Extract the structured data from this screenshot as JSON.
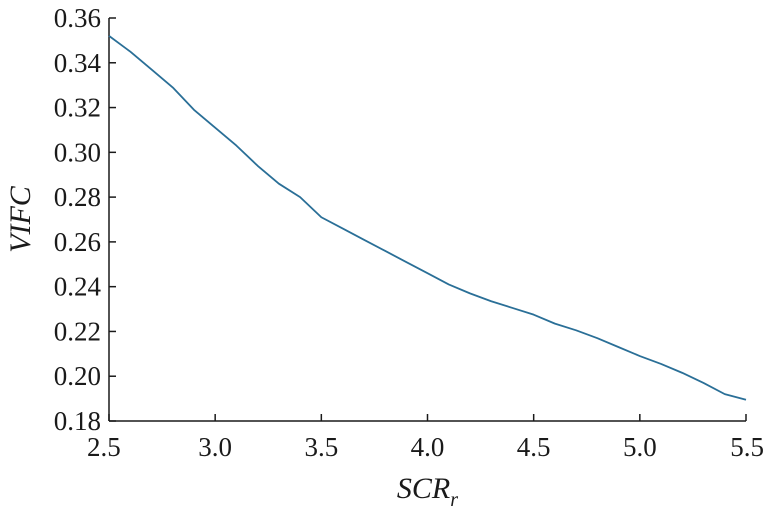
{
  "chart_data": {
    "type": "line",
    "xlabel": "SCR",
    "xlabel_subscript": "r",
    "ylabel": "VIFC",
    "xlim": [
      2.5,
      5.5
    ],
    "ylim": [
      0.18,
      0.36
    ],
    "xticks": [
      "2.5",
      "3.0",
      "3.5",
      "4.0",
      "4.5",
      "5.0",
      "5.5"
    ],
    "yticks": [
      "0.18",
      "0.20",
      "0.22",
      "0.24",
      "0.26",
      "0.28",
      "0.30",
      "0.32",
      "0.34",
      "0.36"
    ],
    "grid": false,
    "series": [
      {
        "color": "#2a6f97",
        "x": [
          2.5,
          2.6,
          2.7,
          2.8,
          2.9,
          3.0,
          3.1,
          3.2,
          3.3,
          3.4,
          3.5,
          3.6,
          3.7,
          3.8,
          3.9,
          4.0,
          4.1,
          4.2,
          4.3,
          4.4,
          4.5,
          4.6,
          4.7,
          4.8,
          4.9,
          5.0,
          5.1,
          5.2,
          5.3,
          5.4,
          5.5
        ],
        "y": [
          0.352,
          0.345,
          0.337,
          0.329,
          0.319,
          0.311,
          0.303,
          0.294,
          0.286,
          0.28,
          0.271,
          0.266,
          0.261,
          0.256,
          0.251,
          0.246,
          0.241,
          0.237,
          0.2335,
          0.2305,
          0.2275,
          0.2235,
          0.2205,
          0.217,
          0.213,
          0.209,
          0.2055,
          0.2015,
          0.197,
          0.192,
          0.1895
        ]
      }
    ]
  }
}
